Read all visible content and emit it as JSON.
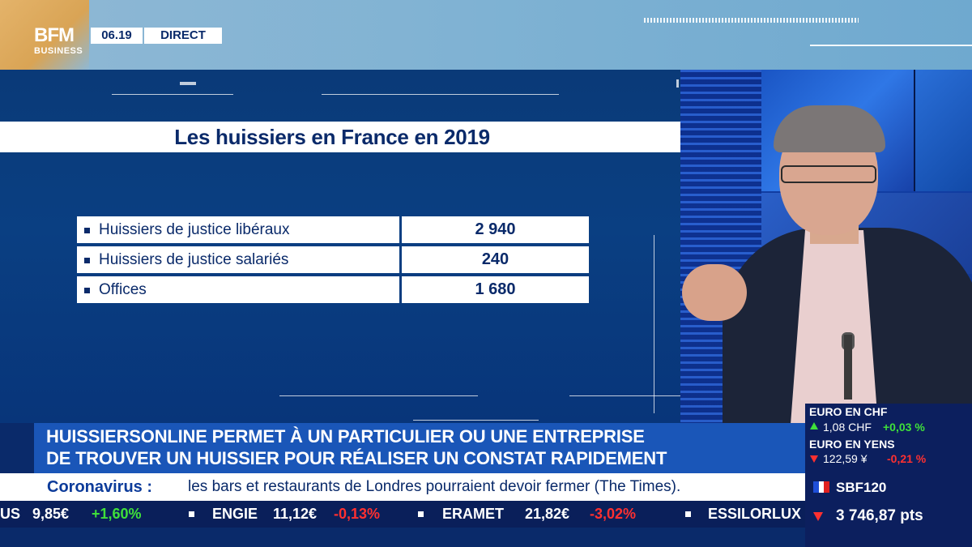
{
  "header": {
    "logo_bfm": "BFM",
    "logo_business": "BUSINESS",
    "time": "06.19",
    "live_label": "DIRECT"
  },
  "graphic": {
    "title": "Les huissiers en France en 2019",
    "rows": [
      {
        "label": "Huissiers de justice libéraux",
        "value": "2 940"
      },
      {
        "label": "Huissiers de justice salariés",
        "value": "240"
      },
      {
        "label": "Offices",
        "value": "1 680"
      }
    ]
  },
  "markets": {
    "eur_chf": {
      "label": "EURO EN CHF",
      "value": "1,08 CHF",
      "change": "+0,03 %"
    },
    "eur_yen": {
      "label": "EURO EN YENS",
      "value": "122,59 ¥",
      "change": "-0,21 %"
    },
    "index": {
      "name": "SBF120",
      "value": "3 746,87 pts"
    }
  },
  "headline": {
    "line1": "HUISSIERSONLINE PERMET À UN PARTICULIER OU UNE ENTREPRISE",
    "line2": "DE TROUVER UN HUISSIER POUR RÉALISER UN CONSTAT RAPIDEMENT"
  },
  "news_strip": {
    "keyword": "Coronavirus :",
    "text": "les bars et restaurants de Londres pourraient devoir fermer (The Times)."
  },
  "ticker": [
    {
      "name": "US",
      "price": "9,85€",
      "change": "+1,60%",
      "dir": "up"
    },
    {
      "name": "ENGIE",
      "price": "11,12€",
      "change": "-0,13%",
      "dir": "down"
    },
    {
      "name": "ERAMET",
      "price": "21,82€",
      "change": "-3,02%",
      "dir": "down"
    },
    {
      "name": "ESSILORLUX",
      "price": "",
      "change": "",
      "dir": ""
    }
  ],
  "colors": {
    "panel_blue": "#0a3a78",
    "navy": "#0a2a6a",
    "headline_blue": "#1a56b8",
    "up_green": "#3fe03a",
    "down_red": "#ff3030"
  }
}
